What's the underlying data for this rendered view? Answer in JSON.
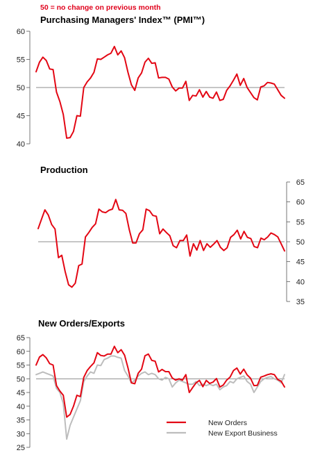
{
  "note": "50 =  no change on previous month",
  "charts": [
    {
      "title": "Purchasing Managers' Index™ (PMI™)",
      "type": "line",
      "axis_side": "left",
      "ylim": [
        40,
        60
      ],
      "yticks": [
        "60",
        "55",
        "50",
        "45",
        "40"
      ],
      "baseline": 50,
      "series": [
        {
          "color": "#e30613",
          "values": [
            52.8,
            54.5,
            55.4,
            54.8,
            53.3,
            53.2,
            49.2,
            47.5,
            45.2,
            41.0,
            41.1,
            42.2,
            45.0,
            44.9,
            50.0,
            51.0,
            51.7,
            52.7,
            55.1,
            55.0,
            55.4,
            55.8,
            56.1,
            57.3,
            55.8,
            56.5,
            55.3,
            52.7,
            50.5,
            49.5,
            51.7,
            52.6,
            54.5,
            55.2,
            54.3,
            54.4,
            51.7,
            51.8,
            51.8,
            51.5,
            50.1,
            49.4,
            49.9,
            49.9,
            51.1,
            47.7,
            48.6,
            48.5,
            49.6,
            48.3,
            49.3,
            48.3,
            48.1,
            49.2,
            47.7,
            47.9,
            49.5,
            50.3,
            51.3,
            52.4,
            50.4,
            51.6,
            50.0,
            49.1,
            48.2,
            47.8,
            50.1,
            50.3,
            50.9,
            50.8,
            50.6,
            49.6,
            48.6,
            48.1
          ]
        }
      ]
    },
    {
      "title": "Production",
      "type": "line",
      "axis_side": "right",
      "ylim": [
        35,
        65
      ],
      "yticks": [
        "65",
        "60",
        "55",
        "50",
        "45",
        "40",
        "35"
      ],
      "baseline": 50,
      "series": [
        {
          "color": "#e30613",
          "values": [
            53.3,
            55.7,
            58.0,
            56.7,
            54.3,
            53.2,
            46.0,
            46.6,
            42.5,
            39.2,
            38.6,
            39.6,
            44.0,
            44.4,
            51.2,
            52.3,
            53.6,
            54.5,
            58.2,
            57.5,
            57.3,
            57.9,
            58.2,
            60.6,
            58.0,
            57.9,
            57.1,
            53.0,
            49.7,
            49.7,
            52.0,
            53.0,
            58.2,
            57.8,
            56.6,
            56.4,
            52.0,
            53.2,
            52.3,
            51.5,
            49.0,
            48.5,
            50.3,
            50.3,
            51.7,
            46.4,
            49.5,
            47.9,
            50.3,
            47.8,
            49.5,
            48.6,
            49.4,
            50.3,
            48.6,
            47.8,
            48.5,
            51.1,
            51.8,
            52.9,
            50.7,
            52.6,
            51.1,
            50.8,
            48.8,
            48.5,
            50.9,
            50.5,
            51.2,
            52.2,
            51.8,
            51.2,
            49.5,
            47.7
          ]
        }
      ]
    },
    {
      "title": "New Orders/Exports",
      "type": "line",
      "axis_side": "left",
      "ylim": [
        25,
        65
      ],
      "yticks": [
        "65",
        "60",
        "55",
        "50",
        "45",
        "40",
        "35",
        "30",
        "25"
      ],
      "baseline": 50,
      "series": [
        {
          "name": "New Orders",
          "color": "#e30613",
          "values": [
            55.0,
            57.9,
            58.8,
            57.6,
            55.5,
            55.0,
            47.5,
            45.5,
            44.0,
            36.0,
            37.0,
            40.0,
            44.0,
            43.5,
            50.5,
            53.0,
            54.5,
            55.8,
            59.5,
            58.5,
            58.3,
            59.0,
            59.0,
            61.8,
            59.5,
            60.6,
            58.6,
            54.0,
            48.5,
            48.2,
            52.0,
            53.5,
            58.4,
            59.0,
            56.7,
            56.4,
            52.5,
            53.4,
            52.6,
            52.6,
            50.3,
            49.5,
            50.0,
            49.5,
            51.5,
            45.0,
            46.8,
            48.5,
            49.4,
            47.1,
            49.4,
            48.3,
            48.8,
            50.1,
            47.0,
            47.7,
            49.5,
            50.6,
            53.0,
            53.9,
            51.7,
            53.5,
            51.4,
            50.2,
            47.5,
            47.6,
            50.6,
            51.0,
            51.5,
            51.8,
            51.5,
            49.7,
            49.1,
            47.0
          ]
        },
        {
          "name": "New Export Business",
          "color": "#bdbdbd",
          "values": [
            51.5,
            52.0,
            52.5,
            52.0,
            51.5,
            51.0,
            46.5,
            45.0,
            41.0,
            28.0,
            33.0,
            36.0,
            39.0,
            42.0,
            49.0,
            51.0,
            52.5,
            52.0,
            55.0,
            54.8,
            57.0,
            57.5,
            58.3,
            58.3,
            57.8,
            57.5,
            53.0,
            51.0,
            48.5,
            49.5,
            51.0,
            52.0,
            52.5,
            51.5,
            52.0,
            51.5,
            50.0,
            49.5,
            50.5,
            50.0,
            47.0,
            48.5,
            49.5,
            49.0,
            48.5,
            48.0,
            48.0,
            49.0,
            47.5,
            48.0,
            47.5,
            48.0,
            47.5,
            48.0,
            46.0,
            47.0,
            47.5,
            49.0,
            48.5,
            50.0,
            50.5,
            51.0,
            49.0,
            48.0,
            45.0,
            47.0,
            49.0,
            50.0,
            50.5,
            50.8,
            50.0,
            49.5,
            48.5,
            51.5
          ]
        }
      ]
    }
  ],
  "legend": [
    "New Orders",
    "New Export Business"
  ]
}
